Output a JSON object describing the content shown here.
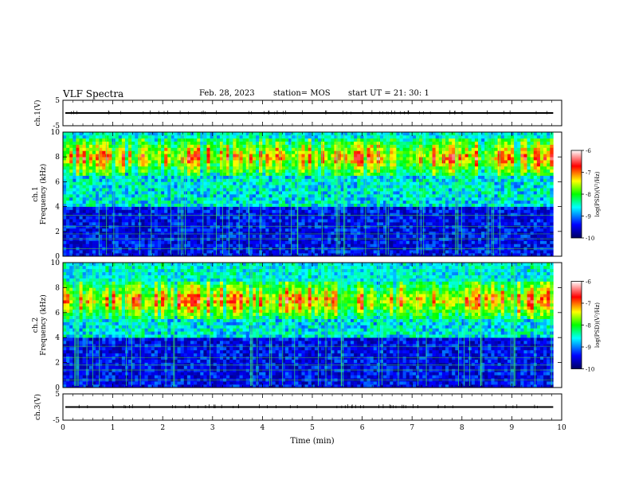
{
  "header": {
    "title": "VLF Spectra",
    "date": "Feb. 28, 2023",
    "station": "station= MOS",
    "start": "start UT =  21: 30: 1"
  },
  "chart_data": [
    {
      "type": "line",
      "panel": "ch1_waveform",
      "ylabel": "ch.1(V)",
      "yticks": [
        "5",
        "-5"
      ],
      "ylim": [
        -5,
        5
      ],
      "xlim": [
        0,
        10
      ],
      "grid": false,
      "series": [
        {
          "values_description_level": 0
        }
      ]
    },
    {
      "type": "heatmap",
      "panel": "ch1_spectrogram",
      "ylabel": "ch.1\nFrequency (kHz)",
      "ylabel_lines": [
        "ch.1",
        "Frequency (kHz)"
      ],
      "yticks": [
        "0",
        "2",
        "4",
        "6",
        "8",
        "10"
      ],
      "ylim": [
        0,
        10
      ],
      "xlim": [
        0,
        9.83
      ],
      "colorbar": {
        "label": "log(PSD)(V²/Hz)",
        "ticks": [
          "-6",
          "-7",
          "-8",
          "-9",
          "-10"
        ],
        "range": [
          -10,
          -6
        ]
      },
      "intense_band_khz": [
        6.5,
        9.5
      ],
      "background_level": -10
    },
    {
      "type": "heatmap",
      "panel": "ch2_spectrogram",
      "ylabel_lines": [
        "ch.2",
        "Frequency (kHz)"
      ],
      "yticks": [
        "0",
        "2",
        "4",
        "6",
        "8",
        "10"
      ],
      "ylim": [
        0,
        10
      ],
      "xlim": [
        0,
        9.83
      ],
      "colorbar": {
        "label": "log(PSD)(V²/Hz)",
        "ticks": [
          "-6",
          "-7",
          "-8",
          "-9",
          "-10"
        ],
        "range": [
          -10,
          -6
        ]
      },
      "intense_band_khz": [
        5.5,
        8.5
      ],
      "background_level": -10
    },
    {
      "type": "line",
      "panel": "ch3_waveform",
      "ylabel": "ch.3(V)",
      "yticks": [
        "5",
        "-5"
      ],
      "ylim": [
        -5,
        5
      ],
      "xlim": [
        0,
        10
      ],
      "grid": false,
      "series": [
        {
          "values_description_level": 0
        }
      ]
    }
  ],
  "xaxis": {
    "label": "Time (min)",
    "ticks": [
      "0",
      "1",
      "2",
      "3",
      "4",
      "5",
      "6",
      "7",
      "8",
      "9",
      "10"
    ],
    "range": [
      0,
      10
    ]
  },
  "colors": {
    "colormap": [
      "#000060",
      "#0000ff",
      "#00ffff",
      "#00ff00",
      "#ffff00",
      "#ff0000",
      "#ffffff"
    ]
  }
}
